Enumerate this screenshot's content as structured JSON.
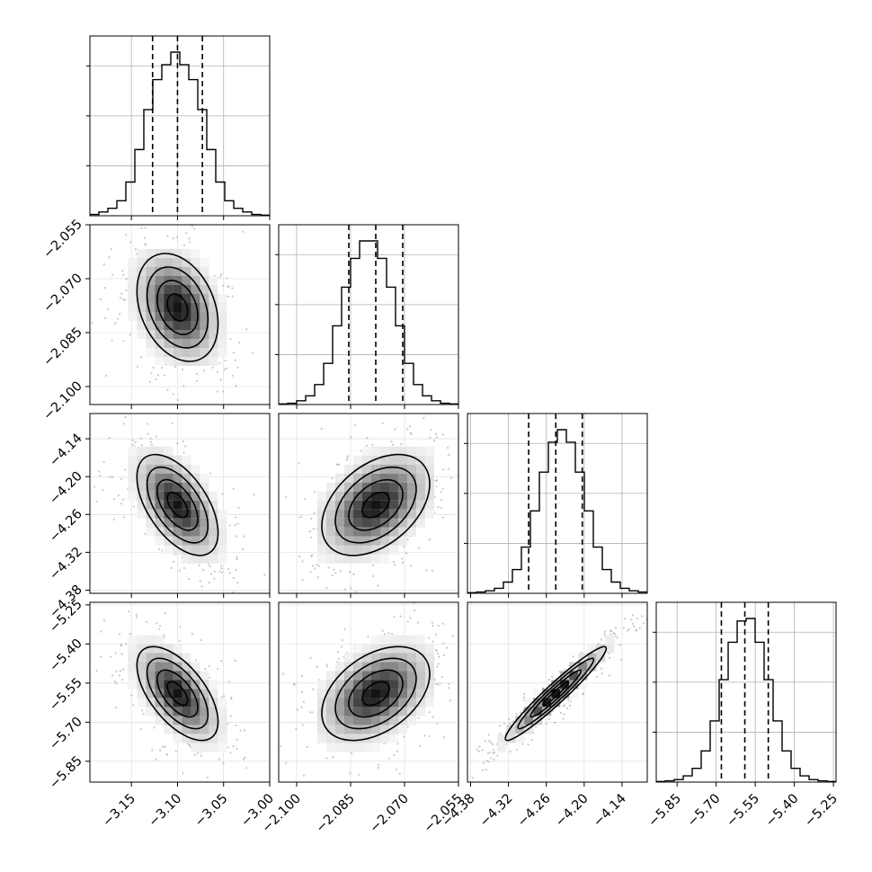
{
  "chart_data": {
    "type": "corner",
    "parameters": [
      {
        "index": 0,
        "mean": -3.1,
        "sd": 0.022,
        "range": [
          -3.195,
          -3.0
        ],
        "ticks": [
          -3.15,
          -3.1,
          -3.05,
          -3.0
        ],
        "tick_labels": [
          "−3.15",
          "−3.10",
          "−3.05",
          "−3.00"
        ],
        "quantiles": [
          -3.127,
          -3.1,
          -3.073
        ]
      },
      {
        "index": 1,
        "mean": -2.078,
        "sd": 0.0075,
        "range": [
          -2.105,
          -2.055
        ],
        "ticks": [
          -2.1,
          -2.085,
          -2.07,
          -2.055
        ],
        "tick_labels": [
          "−2.100",
          "−2.085",
          "−2.070",
          "−2.055"
        ],
        "quantiles": [
          -2.0855,
          -2.078,
          -2.0705
        ]
      },
      {
        "index": 2,
        "mean": -4.245,
        "sd": 0.04,
        "range": [
          -4.385,
          -4.1
        ],
        "ticks": [
          -4.38,
          -4.32,
          -4.26,
          -4.2,
          -4.14
        ],
        "tick_labels": [
          "−4.38",
          "−4.32",
          "−4.26",
          "−4.20",
          "−4.14"
        ],
        "quantiles": [
          -4.288,
          -4.245,
          -4.203
        ]
      },
      {
        "index": 3,
        "mean": -5.59,
        "sd": 0.09,
        "range": [
          -5.93,
          -5.24
        ],
        "ticks": [
          -5.85,
          -5.7,
          -5.55,
          -5.4,
          -5.25
        ],
        "tick_labels": [
          "−5.85",
          "−5.70",
          "−5.55",
          "−5.40",
          "−5.25"
        ],
        "quantiles": [
          -5.68,
          -5.59,
          -5.5
        ]
      }
    ],
    "correlations": {
      "0-1": -0.3,
      "0-2": -0.55,
      "0-3": -0.6,
      "1-2": 0.42,
      "1-3": 0.42,
      "2-3": 0.96
    },
    "histograms": [
      {
        "param": 0,
        "bins": 20,
        "counts": [
          1,
          3,
          6,
          12,
          27,
          53,
          85,
          109,
          121,
          131,
          121,
          109,
          85,
          53,
          27,
          12,
          6,
          3,
          1,
          0.5
        ]
      },
      {
        "param": 1,
        "bins": 20,
        "counts": [
          0.5,
          1,
          3,
          7,
          16,
          33,
          63,
          94,
          117,
          131,
          131,
          117,
          94,
          63,
          33,
          16,
          7,
          3,
          1,
          0.5
        ]
      },
      {
        "param": 2,
        "bins": 20,
        "counts": [
          0.5,
          1,
          2,
          4,
          9,
          19,
          37,
          66,
          97,
          121,
          131,
          121,
          97,
          66,
          37,
          19,
          9,
          4,
          2,
          1
        ]
      },
      {
        "param": 3,
        "bins": 20,
        "counts": [
          0.5,
          1,
          2,
          5,
          11,
          25,
          49,
          82,
          112,
          129,
          131,
          112,
          82,
          49,
          25,
          11,
          5,
          2,
          1,
          0.5
        ]
      }
    ],
    "contour_levels_sigma": [
      0.5,
      1.0,
      1.5,
      2.0
    ],
    "scatter_points_per_panel": 450,
    "grid": true,
    "xlabel": "",
    "ylabel": "",
    "title": ""
  }
}
